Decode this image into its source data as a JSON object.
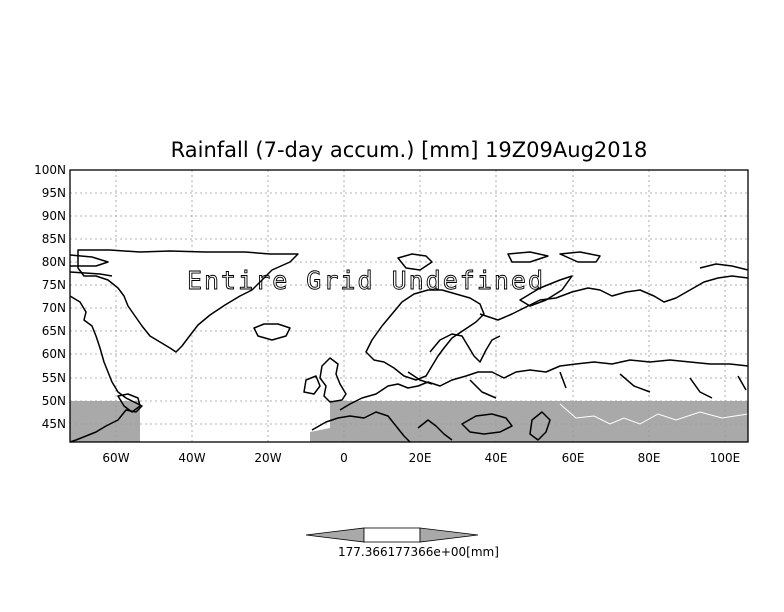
{
  "title": "Rainfall (7-day accum.) [mm] 19Z09Aug2018",
  "overlay_message": "Entire Grid Undefined",
  "lat_labels": [
    "100N",
    "95N",
    "90N",
    "85N",
    "80N",
    "75N",
    "70N",
    "65N",
    "60N",
    "55N",
    "50N",
    "45N"
  ],
  "lon_labels": [
    "60W",
    "40W",
    "20W",
    "0",
    "20E",
    "40E",
    "60E",
    "80E",
    "100E"
  ],
  "colorbar": {
    "label": "177.366177366e+00[mm]",
    "value_left": "177.366",
    "value_right": "177.366e+00",
    "unit": "[mm]"
  },
  "colors": {
    "shaded": "#a9a9a9",
    "coastline": "#000000",
    "grid": "#9a9a9a",
    "background": "#ffffff"
  },
  "map": {
    "projection": "latlon",
    "lon_range": [
      -73,
      105
    ],
    "lat_range": [
      41,
      100
    ],
    "shaded_lat_max": 50
  }
}
